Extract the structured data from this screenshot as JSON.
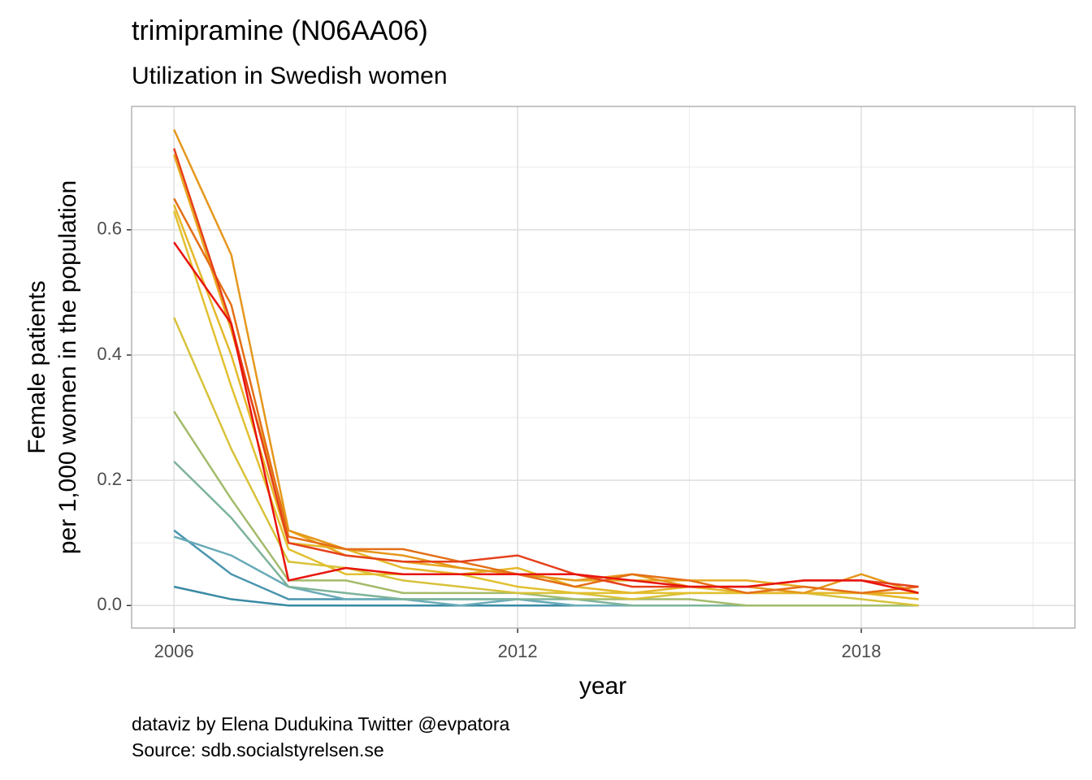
{
  "chart_data": {
    "type": "line",
    "title": "trimipramine (N06AA06)",
    "subtitle": "Utilization in Swedish women",
    "x_label": "year",
    "y_label": [
      "Female patients",
      "per 1,000 women in the population"
    ],
    "caption": [
      "dataviz by Elena Dudukina Twitter @evpatora",
      "Source: sdb.socialstyrelsen.se"
    ],
    "x": [
      2006,
      2007,
      2008,
      2009,
      2010,
      2011,
      2012,
      2013,
      2014,
      2015,
      2016,
      2017,
      2018,
      2019
    ],
    "xlim": [
      2005.26,
      2021.73
    ],
    "xticks": [
      2006,
      2012,
      2018
    ],
    "ylim": [
      -0.036,
      0.797
    ],
    "yticks": [
      {
        "value": 0,
        "label": "0.0"
      },
      0.2,
      0.4,
      0.6
    ],
    "grid": true,
    "series": [
      {
        "color": "#3a8aa3",
        "values": [
          0.03,
          0.01,
          0,
          0,
          0,
          0,
          0,
          0,
          0,
          0,
          0,
          0,
          0,
          0
        ]
      },
      {
        "color": "#4a95ae",
        "values": [
          0.12,
          0.05,
          0.01,
          0.01,
          0.01,
          0.01,
          0.01,
          0,
          0,
          0,
          0,
          0,
          0,
          0
        ]
      },
      {
        "color": "#6aabb8",
        "values": [
          0.11,
          0.08,
          0.03,
          0.01,
          0.01,
          0,
          0.01,
          0,
          0,
          0,
          0,
          0,
          0,
          0
        ]
      },
      {
        "color": "#7db39a",
        "values": [
          0.23,
          0.14,
          0.03,
          0.02,
          0.01,
          0.01,
          0.01,
          0.01,
          0,
          0,
          0,
          0,
          0,
          0
        ]
      },
      {
        "color": "#a3bb6a",
        "values": [
          0.31,
          0.17,
          0.04,
          0.04,
          0.02,
          0.02,
          0.02,
          0.01,
          0.01,
          0.01,
          0,
          0,
          0,
          0
        ]
      },
      {
        "color": "#d8c23a",
        "values": [
          0.46,
          0.25,
          0.07,
          0.06,
          0.04,
          0.03,
          0.02,
          0.02,
          0.01,
          0.02,
          0.02,
          0.02,
          0.01,
          0
        ]
      },
      {
        "color": "#e2c02f",
        "values": [
          0.63,
          0.35,
          0.09,
          0.05,
          0.05,
          0.05,
          0.03,
          0.02,
          0.02,
          0.02,
          0.02,
          0.02,
          0.02,
          0.01
        ]
      },
      {
        "color": "#e5b82a",
        "values": [
          0.64,
          0.4,
          0.1,
          0.09,
          0.06,
          0.05,
          0.06,
          0.03,
          0.02,
          0.03,
          0.02,
          0.02,
          0.02,
          0.01
        ]
      },
      {
        "color": "#e8a820",
        "values": [
          0.72,
          0.44,
          0.12,
          0.08,
          0.07,
          0.06,
          0.05,
          0.04,
          0.04,
          0.04,
          0.04,
          0.03,
          0.02,
          0.02
        ]
      },
      {
        "color": "#e5971c",
        "values": [
          0.76,
          0.56,
          0.12,
          0.09,
          0.08,
          0.06,
          0.05,
          0.04,
          0.05,
          0.03,
          0.03,
          0.02,
          0.05,
          0.02
        ]
      },
      {
        "color": "#e46f16",
        "values": [
          0.65,
          0.48,
          0.11,
          0.09,
          0.09,
          0.07,
          0.05,
          0.03,
          0.05,
          0.04,
          0.02,
          0.03,
          0.02,
          0.03
        ]
      },
      {
        "color": "#e5401a",
        "values": [
          0.73,
          0.45,
          0.1,
          0.08,
          0.07,
          0.07,
          0.08,
          0.05,
          0.03,
          0.03,
          0.03,
          0.04,
          0.04,
          0.03
        ]
      },
      {
        "color": "#e8140e",
        "values": [
          0.58,
          0.45,
          0.04,
          0.06,
          0.05,
          0.05,
          0.05,
          0.05,
          0.04,
          0.03,
          0.03,
          0.04,
          0.04,
          0.02
        ]
      }
    ]
  }
}
